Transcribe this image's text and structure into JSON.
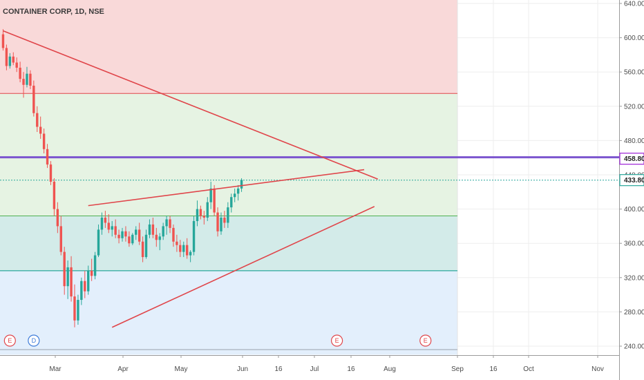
{
  "chart_data": {
    "type": "candlestick",
    "title": "CONTAINER CORP, 1D, NSE",
    "y_axis": {
      "ticks": [
        "640.00",
        "600.00",
        "560.00",
        "520.00",
        "480.00",
        "440.00",
        "400.00",
        "360.00",
        "320.00",
        "280.00",
        "240.00"
      ],
      "range": [
        230,
        650
      ]
    },
    "x_axis": {
      "ticks": [
        "Mar",
        "Apr",
        "May",
        "Jun",
        "16",
        "Jul",
        "16",
        "Aug",
        "Sep",
        "16",
        "Oct",
        "Nov"
      ]
    },
    "price_tags": [
      {
        "value": 458.8,
        "label": "458.80",
        "color": "#9b1fd6"
      },
      {
        "value": 433.8,
        "label": "433.80",
        "color": "#26a69a"
      }
    ],
    "zones": [
      {
        "from": 535,
        "to": 650,
        "color": "#f9d9d9"
      },
      {
        "from": 392,
        "to": 535,
        "color": "#e6f3e3"
      },
      {
        "from": 328,
        "to": 392,
        "color": "#d3ebe9"
      },
      {
        "from": 230,
        "to": 328,
        "color": "#e3effc"
      }
    ],
    "horizontal_lines": [
      {
        "value": 535,
        "color": "#e0454a"
      },
      {
        "value": 460.5,
        "color": "#7c55cf"
      },
      {
        "value": 392,
        "color": "#4caf50"
      },
      {
        "value": 328,
        "color": "#009688"
      },
      {
        "value": 236,
        "color": "#9aa0ad"
      }
    ],
    "trendlines": [
      {
        "from": [
          0,
          608
        ],
        "to": [
          110,
          435
        ],
        "color": "#e0454a"
      },
      {
        "from": [
          25,
          404
        ],
        "to": [
          106,
          446
        ],
        "color": "#e0454a"
      },
      {
        "from": [
          32,
          262
        ],
        "to": [
          109,
          403
        ],
        "color": "#e0454a"
      }
    ],
    "events": [
      {
        "x": 2,
        "label": "E",
        "color": "#e0454a"
      },
      {
        "x": 9,
        "label": "D",
        "color": "#3d7bd9"
      },
      {
        "x": 98,
        "label": "E",
        "color": "#e0454a"
      },
      {
        "x": 124,
        "label": "E",
        "color": "#e0454a"
      }
    ],
    "candles": [
      [
        604,
        610,
        585,
        588
      ],
      [
        588,
        592,
        562,
        567
      ],
      [
        567,
        582,
        564,
        578
      ],
      [
        578,
        583,
        568,
        571
      ],
      [
        571,
        577,
        560,
        565
      ],
      [
        565,
        572,
        548,
        552
      ],
      [
        552,
        560,
        530,
        545
      ],
      [
        545,
        566,
        542,
        558
      ],
      [
        558,
        562,
        540,
        544
      ],
      [
        544,
        550,
        508,
        512
      ],
      [
        512,
        520,
        490,
        496
      ],
      [
        496,
        508,
        482,
        488
      ],
      [
        488,
        494,
        465,
        470
      ],
      [
        470,
        476,
        448,
        452
      ],
      [
        452,
        456,
        428,
        432
      ],
      [
        432,
        436,
        392,
        400
      ],
      [
        400,
        408,
        372,
        380
      ],
      [
        380,
        392,
        346,
        350
      ],
      [
        350,
        356,
        300,
        310
      ],
      [
        310,
        340,
        295,
        332
      ],
      [
        332,
        345,
        292,
        298
      ],
      [
        298,
        312,
        262,
        270
      ],
      [
        270,
        300,
        265,
        294
      ],
      [
        294,
        320,
        288,
        316
      ],
      [
        316,
        328,
        296,
        304
      ],
      [
        304,
        334,
        300,
        328
      ],
      [
        328,
        342,
        316,
        322
      ],
      [
        322,
        350,
        318,
        346
      ],
      [
        346,
        382,
        344,
        376
      ],
      [
        376,
        396,
        370,
        390
      ],
      [
        390,
        398,
        378,
        384
      ],
      [
        384,
        394,
        372,
        376
      ],
      [
        376,
        386,
        368,
        380
      ],
      [
        380,
        388,
        366,
        370
      ],
      [
        370,
        376,
        360,
        366
      ],
      [
        366,
        378,
        362,
        374
      ],
      [
        374,
        380,
        362,
        368
      ],
      [
        368,
        374,
        356,
        360
      ],
      [
        360,
        372,
        358,
        370
      ],
      [
        370,
        380,
        364,
        376
      ],
      [
        376,
        384,
        358,
        362
      ],
      [
        362,
        368,
        338,
        344
      ],
      [
        344,
        376,
        342,
        370
      ],
      [
        370,
        388,
        366,
        382
      ],
      [
        382,
        390,
        366,
        370
      ],
      [
        370,
        378,
        356,
        364
      ],
      [
        364,
        372,
        352,
        368
      ],
      [
        368,
        384,
        364,
        380
      ],
      [
        380,
        392,
        370,
        388
      ],
      [
        388,
        392,
        372,
        378
      ],
      [
        378,
        382,
        356,
        362
      ],
      [
        362,
        370,
        350,
        358
      ],
      [
        358,
        364,
        344,
        350
      ],
      [
        350,
        362,
        344,
        358
      ],
      [
        358,
        366,
        342,
        346
      ],
      [
        346,
        352,
        338,
        350
      ],
      [
        350,
        392,
        346,
        386
      ],
      [
        386,
        410,
        380,
        400
      ],
      [
        400,
        404,
        388,
        392
      ],
      [
        392,
        398,
        382,
        390
      ],
      [
        390,
        414,
        386,
        408
      ],
      [
        408,
        432,
        400,
        424
      ],
      [
        424,
        428,
        392,
        396
      ],
      [
        396,
        402,
        368,
        374
      ],
      [
        374,
        396,
        370,
        390
      ],
      [
        390,
        398,
        378,
        384
      ],
      [
        384,
        408,
        378,
        402
      ],
      [
        402,
        418,
        396,
        414
      ],
      [
        414,
        424,
        408,
        418
      ],
      [
        418,
        428,
        410,
        424
      ],
      [
        424,
        436,
        420,
        434
      ]
    ]
  }
}
